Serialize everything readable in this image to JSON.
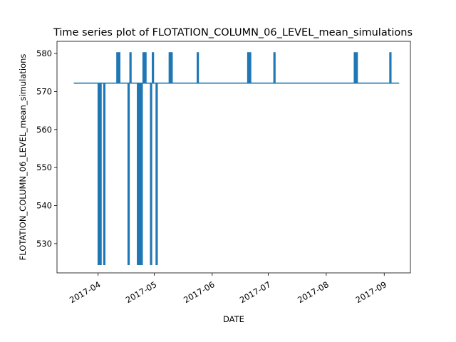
{
  "chart_data": {
    "type": "line",
    "title": "Time series plot of FLOTATION_COLUMN_06_LEVEL_mean_simulations",
    "xlabel": "DATE",
    "ylabel": "FLOTATION_COLUMN_06_LEVEL_mean_simulations",
    "xlim": [
      "2017-03-10",
      "2017-09-15"
    ],
    "ylim": [
      522.3,
      583.2
    ],
    "x_ticks": [
      "2017-04-01",
      "2017-05-01",
      "2017-06-01",
      "2017-07-01",
      "2017-08-01",
      "2017-09-01"
    ],
    "x_tick_labels": [
      "2017-04",
      "2017-05",
      "2017-06",
      "2017-07",
      "2017-08",
      "2017-09"
    ],
    "y_ticks": [
      530,
      540,
      550,
      560,
      570,
      580
    ],
    "y_tick_labels": [
      "530",
      "540",
      "550",
      "560",
      "570",
      "580"
    ],
    "grid": false,
    "legend": "none",
    "series": [
      {
        "color": "#1f77b4",
        "baseline": 572.2,
        "x_start": "2017-03-19",
        "x_end": "2017-09-09",
        "spikes": [
          {
            "date": "2017-04-01",
            "value": 524.5
          },
          {
            "date": "2017-04-02",
            "value": 524.5
          },
          {
            "date": "2017-04-04",
            "value": 524.5
          },
          {
            "date": "2017-04-11",
            "value": 580.2
          },
          {
            "date": "2017-04-12",
            "value": 580.2
          },
          {
            "date": "2017-04-17",
            "value": 524.5
          },
          {
            "date": "2017-04-18",
            "value": 580.2
          },
          {
            "date": "2017-04-22",
            "value": 524.5
          },
          {
            "date": "2017-04-23",
            "value": 524.5
          },
          {
            "date": "2017-04-24",
            "value": 524.5
          },
          {
            "date": "2017-04-25",
            "value": 580.2
          },
          {
            "date": "2017-04-26",
            "value": 580.2
          },
          {
            "date": "2017-04-29",
            "value": 524.5
          },
          {
            "date": "2017-04-30",
            "value": 580.2
          },
          {
            "date": "2017-05-02",
            "value": 524.5
          },
          {
            "date": "2017-05-09",
            "value": 580.2
          },
          {
            "date": "2017-05-10",
            "value": 580.2
          },
          {
            "date": "2017-05-24",
            "value": 580.2
          },
          {
            "date": "2017-06-20",
            "value": 580.2
          },
          {
            "date": "2017-06-21",
            "value": 580.2
          },
          {
            "date": "2017-07-04",
            "value": 580.2
          },
          {
            "date": "2017-08-16",
            "value": 580.2
          },
          {
            "date": "2017-08-17",
            "value": 580.2
          },
          {
            "date": "2017-09-04",
            "value": 580.2
          }
        ]
      }
    ]
  }
}
